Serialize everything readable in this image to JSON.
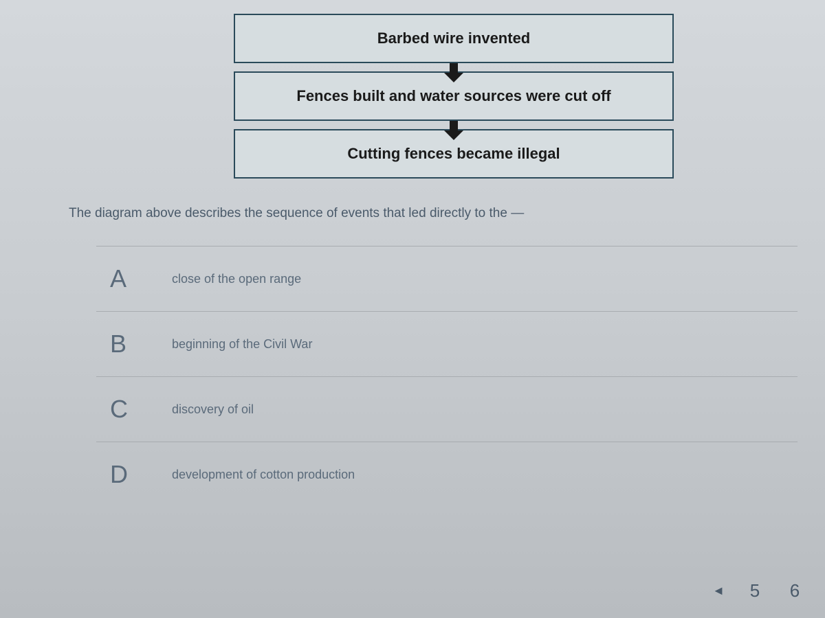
{
  "flowchart": {
    "boxes": [
      "Barbed wire invented",
      "Fences built and water sources were cut off",
      "Cutting fences became illegal"
    ],
    "box_border_color": "#2a4a5a",
    "box_bg_color": "#d6dde0",
    "box_text_color": "#1a1a1a",
    "box_fontsize": 22,
    "arrow_color": "#1a1a1a"
  },
  "question": {
    "text": "The diagram above describes the sequence of events that led directly to the —",
    "color": "#4a5a6a",
    "fontsize": 19
  },
  "options": [
    {
      "letter": "A",
      "text": "close of the open range"
    },
    {
      "letter": "B",
      "text": "beginning of the Civil War"
    },
    {
      "letter": "C",
      "text": "discovery of oil"
    },
    {
      "letter": "D",
      "text": "development of cotton production"
    }
  ],
  "option_style": {
    "letter_fontsize": 36,
    "text_fontsize": 18,
    "color": "#5a6a7a",
    "divider_color": "#a8acb0"
  },
  "pagination": {
    "prev_symbol": "◄",
    "pages": [
      "5",
      "6"
    ],
    "color": "#4a5a6a"
  },
  "background": {
    "gradient_top": "#d4d8dc",
    "gradient_mid": "#c8ccd0",
    "gradient_bottom": "#b8bcc0"
  }
}
